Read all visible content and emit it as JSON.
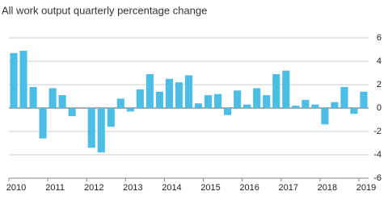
{
  "chart_data": {
    "type": "bar",
    "title": "All work output quarterly percentage change",
    "categories": [
      "2010",
      null,
      null,
      null,
      "2011",
      null,
      null,
      null,
      "2012",
      null,
      null,
      null,
      "2013",
      null,
      null,
      null,
      "2014",
      null,
      null,
      null,
      "2015",
      null,
      null,
      null,
      "2016",
      null,
      null,
      null,
      "2017",
      null,
      null,
      null,
      "2018",
      null,
      null,
      null,
      "2019"
    ],
    "values": [
      4.7,
      4.9,
      1.8,
      -2.6,
      1.7,
      1.1,
      -0.7,
      0.0,
      -3.4,
      -3.8,
      -1.6,
      0.8,
      -0.3,
      1.6,
      2.9,
      1.4,
      2.5,
      2.2,
      2.8,
      0.4,
      1.1,
      1.2,
      -0.6,
      1.5,
      0.3,
      1.7,
      1.1,
      2.9,
      3.2,
      0.2,
      0.7,
      0.3,
      -1.4,
      0.5,
      1.8,
      -0.5,
      1.4
    ],
    "color": "#4cbde5",
    "ylim": [
      -6,
      6
    ],
    "yticks": [
      -6,
      -4,
      -2,
      0,
      2,
      4,
      6
    ],
    "grid": true
  }
}
